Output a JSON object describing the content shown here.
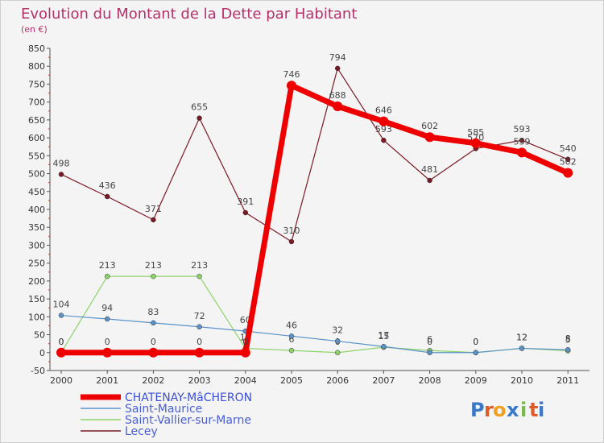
{
  "chart_data": {
    "type": "line",
    "title": "Evolution du Montant de la Dette par Habitant",
    "subtitle": "(en €)",
    "xlabel": "",
    "ylabel": "",
    "x": [
      "2000",
      "2001",
      "2002",
      "2003",
      "2004",
      "2005",
      "2006",
      "2007",
      "2008",
      "2009",
      "2010",
      "2011"
    ],
    "ylim": [
      -50,
      850
    ],
    "yticks": [
      -50,
      0,
      50,
      100,
      150,
      200,
      250,
      300,
      350,
      400,
      450,
      500,
      550,
      600,
      650,
      700,
      750,
      800,
      850
    ],
    "grid": false,
    "legend_position": "bottom-left",
    "series": [
      {
        "name": "Lecey",
        "color": "#7a1a25",
        "values": [
          498,
          436,
          371,
          655,
          391,
          310,
          794,
          593,
          481,
          570,
          593,
          540
        ]
      },
      {
        "name": "Saint-Vallier-sur-Marne",
        "color": "#8ed36a",
        "values": [
          0,
          213,
          213,
          213,
          12,
          6,
          0,
          15,
          6,
          0,
          12,
          5
        ]
      },
      {
        "name": "Saint-Maurice",
        "color": "#5b93c9",
        "values": [
          104,
          94,
          83,
          72,
          60,
          46,
          32,
          17,
          0,
          0,
          12,
          8
        ]
      },
      {
        "name": "CHATENAY-MâCHERON",
        "color": "#ee0000",
        "values": [
          0,
          0,
          0,
          0,
          0,
          746,
          688,
          646,
          602,
          585,
          559,
          502
        ]
      }
    ],
    "legend": [
      "CHATENAY-MâCHERON",
      "Saint-Maurice",
      "Saint-Vallier-sur-Marne",
      "Lecey"
    ]
  },
  "brand": {
    "letters": [
      "P",
      "r",
      "o",
      "x",
      "i",
      "t",
      "i"
    ],
    "colors": [
      "#3a78c8",
      "#e05b2a",
      "#f0a020",
      "#3a78c8",
      "#79b84a",
      "#e05b2a",
      "#3a78c8"
    ]
  }
}
